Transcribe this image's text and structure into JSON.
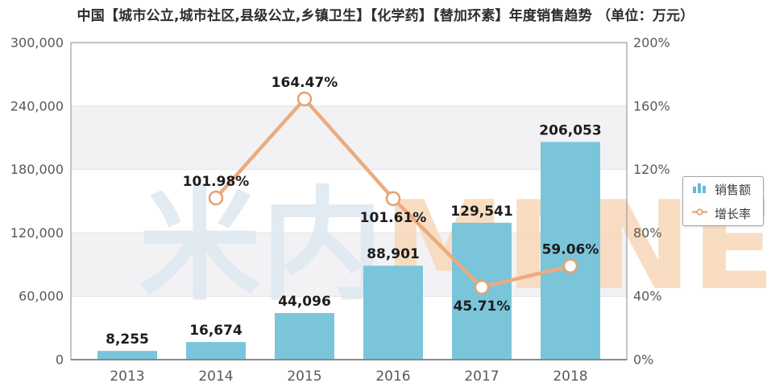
{
  "title": "中国【城市公立,城市社区,县级公立,乡镇卫生】【化学药】【替加环素】年度销售趋势 （单位：万元）",
  "watermark": {
    "cn": "米内",
    "en": "MENET"
  },
  "legend": {
    "items": [
      {
        "label": "销售额",
        "type": "bar"
      },
      {
        "label": "增长率",
        "type": "line"
      }
    ]
  },
  "colors": {
    "bar": "#7bc5db",
    "line": "#ecab7e",
    "marker_fill": "#ffffff",
    "marker_stroke": "#e5a173",
    "band": "#f2f2f5",
    "grid": "#e4e4e8",
    "axis": "#9c9c9c",
    "axis_bottom": "#8a8a8a",
    "axis_text": "#595959",
    "data_label": "#1c1c1c",
    "watermark_cn": "#e0e9f1",
    "watermark_en": "#f9dabc"
  },
  "chart_data": {
    "type": "bar+line",
    "title": "中国【城市公立,城市社区,县级公立,乡镇卫生】【化学药】【替加环素】年度销售趋势",
    "unit": "（单位：万元）",
    "categories": [
      "2013",
      "2014",
      "2015",
      "2016",
      "2017",
      "2018"
    ],
    "series": [
      {
        "name": "销售额",
        "type": "bar",
        "axis": "left",
        "values": [
          8255,
          16674,
          44096,
          88901,
          129541,
          206053
        ],
        "labels": [
          "8,255",
          "16,674",
          "44,096",
          "88,901",
          "129,541",
          "206,053"
        ]
      },
      {
        "name": "增长率",
        "type": "line",
        "axis": "right",
        "values": [
          null,
          101.98,
          164.47,
          101.61,
          45.71,
          59.06
        ],
        "labels": [
          null,
          "101.98%",
          "164.47%",
          "101.61%",
          "45.71%",
          "59.06%"
        ],
        "label_placement": [
          null,
          "above",
          "above",
          "below",
          "below",
          "above"
        ]
      }
    ],
    "y_left": {
      "min": 0,
      "max": 300000,
      "step": 60000,
      "ticks": [
        "300,000",
        "240,000",
        "180,000",
        "120,000",
        "60,000",
        "0"
      ]
    },
    "y_right": {
      "min": 0,
      "max": 200,
      "step": 40,
      "ticks": [
        "200%",
        "160%",
        "120%",
        "80%",
        "40%",
        "0%"
      ]
    },
    "grid": true,
    "alternating_bands": true,
    "legend_position": "right"
  }
}
